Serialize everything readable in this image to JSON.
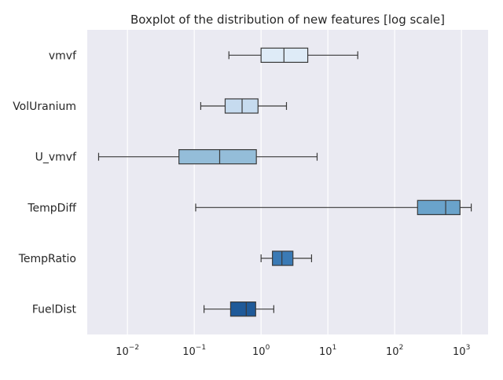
{
  "chart_data": {
    "type": "boxplot",
    "title": "Boxplot of the distribution of new features [log scale]",
    "xlabel": "",
    "ylabel": "",
    "xscale": "log",
    "xlim": [
      0.0025,
      2500
    ],
    "grid": true,
    "xticks": [
      {
        "value": 0.01,
        "mantissa": "10",
        "exp": "−2"
      },
      {
        "value": 0.1,
        "mantissa": "10",
        "exp": "−1"
      },
      {
        "value": 1,
        "mantissa": "10",
        "exp": "0"
      },
      {
        "value": 10,
        "mantissa": "10",
        "exp": "1"
      },
      {
        "value": 100,
        "mantissa": "10",
        "exp": "2"
      },
      {
        "value": 1000,
        "mantissa": "10",
        "exp": "3"
      }
    ],
    "categories": [
      "vmvf",
      "VolUranium",
      "U_vmvf",
      "TempDiff",
      "TempRatio",
      "FuelDist"
    ],
    "boxes": [
      {
        "name": "vmvf",
        "whislo": 0.33,
        "q1": 1.0,
        "med": 2.2,
        "q3": 5.0,
        "whishi": 28,
        "color": "#deebf7"
      },
      {
        "name": "VolUranium",
        "whislo": 0.125,
        "q1": 0.29,
        "med": 0.52,
        "q3": 0.9,
        "whishi": 2.4,
        "color": "#c6dbef"
      },
      {
        "name": "U_vmvf",
        "whislo": 0.0037,
        "q1": 0.059,
        "med": 0.24,
        "q3": 0.85,
        "whishi": 6.9,
        "color": "#94bdd9"
      },
      {
        "name": "TempDiff",
        "whislo": 0.105,
        "q1": 220,
        "med": 580,
        "q3": 950,
        "whishi": 1400,
        "color": "#6aa3cb"
      },
      {
        "name": "TempRatio",
        "whislo": 1.0,
        "q1": 1.48,
        "med": 2.05,
        "q3": 3.0,
        "whishi": 5.7,
        "color": "#3a7ab5"
      },
      {
        "name": "FuelDist",
        "whislo": 0.14,
        "q1": 0.35,
        "med": 0.6,
        "q3": 0.83,
        "whishi": 1.55,
        "color": "#1f5a99"
      }
    ]
  }
}
